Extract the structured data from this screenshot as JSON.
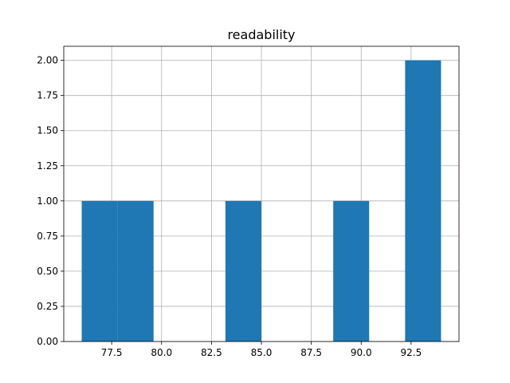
{
  "chart_data": {
    "type": "bar",
    "title": "readability",
    "xlabel": "",
    "ylabel": "",
    "xlim": [
      75.1,
      94.9
    ],
    "ylim": [
      0,
      2.1
    ],
    "grid": true,
    "bar_color": "#1f77b4",
    "bins": [
      {
        "x0": 76.0,
        "x1": 77.8,
        "count": 1
      },
      {
        "x0": 77.8,
        "x1": 79.6,
        "count": 1
      },
      {
        "x0": 79.6,
        "x1": 81.4,
        "count": 0
      },
      {
        "x0": 81.4,
        "x1": 83.2,
        "count": 0
      },
      {
        "x0": 83.2,
        "x1": 85.0,
        "count": 1
      },
      {
        "x0": 85.0,
        "x1": 86.8,
        "count": 0
      },
      {
        "x0": 86.8,
        "x1": 88.6,
        "count": 0
      },
      {
        "x0": 88.6,
        "x1": 90.4,
        "count": 1
      },
      {
        "x0": 90.4,
        "x1": 92.2,
        "count": 0
      },
      {
        "x0": 92.2,
        "x1": 94.0,
        "count": 2
      }
    ],
    "x_ticks": [
      77.5,
      80.0,
      82.5,
      85.0,
      87.5,
      90.0,
      92.5
    ],
    "x_tick_labels": [
      "77.5",
      "80.0",
      "82.5",
      "85.0",
      "87.5",
      "90.0",
      "92.5"
    ],
    "y_ticks": [
      0,
      0.25,
      0.5,
      0.75,
      1.0,
      1.25,
      1.5,
      1.75,
      2.0
    ],
    "y_tick_labels": [
      "0.00",
      "0.25",
      "0.50",
      "0.75",
      "1.00",
      "1.25",
      "1.50",
      "1.75",
      "2.00"
    ]
  }
}
